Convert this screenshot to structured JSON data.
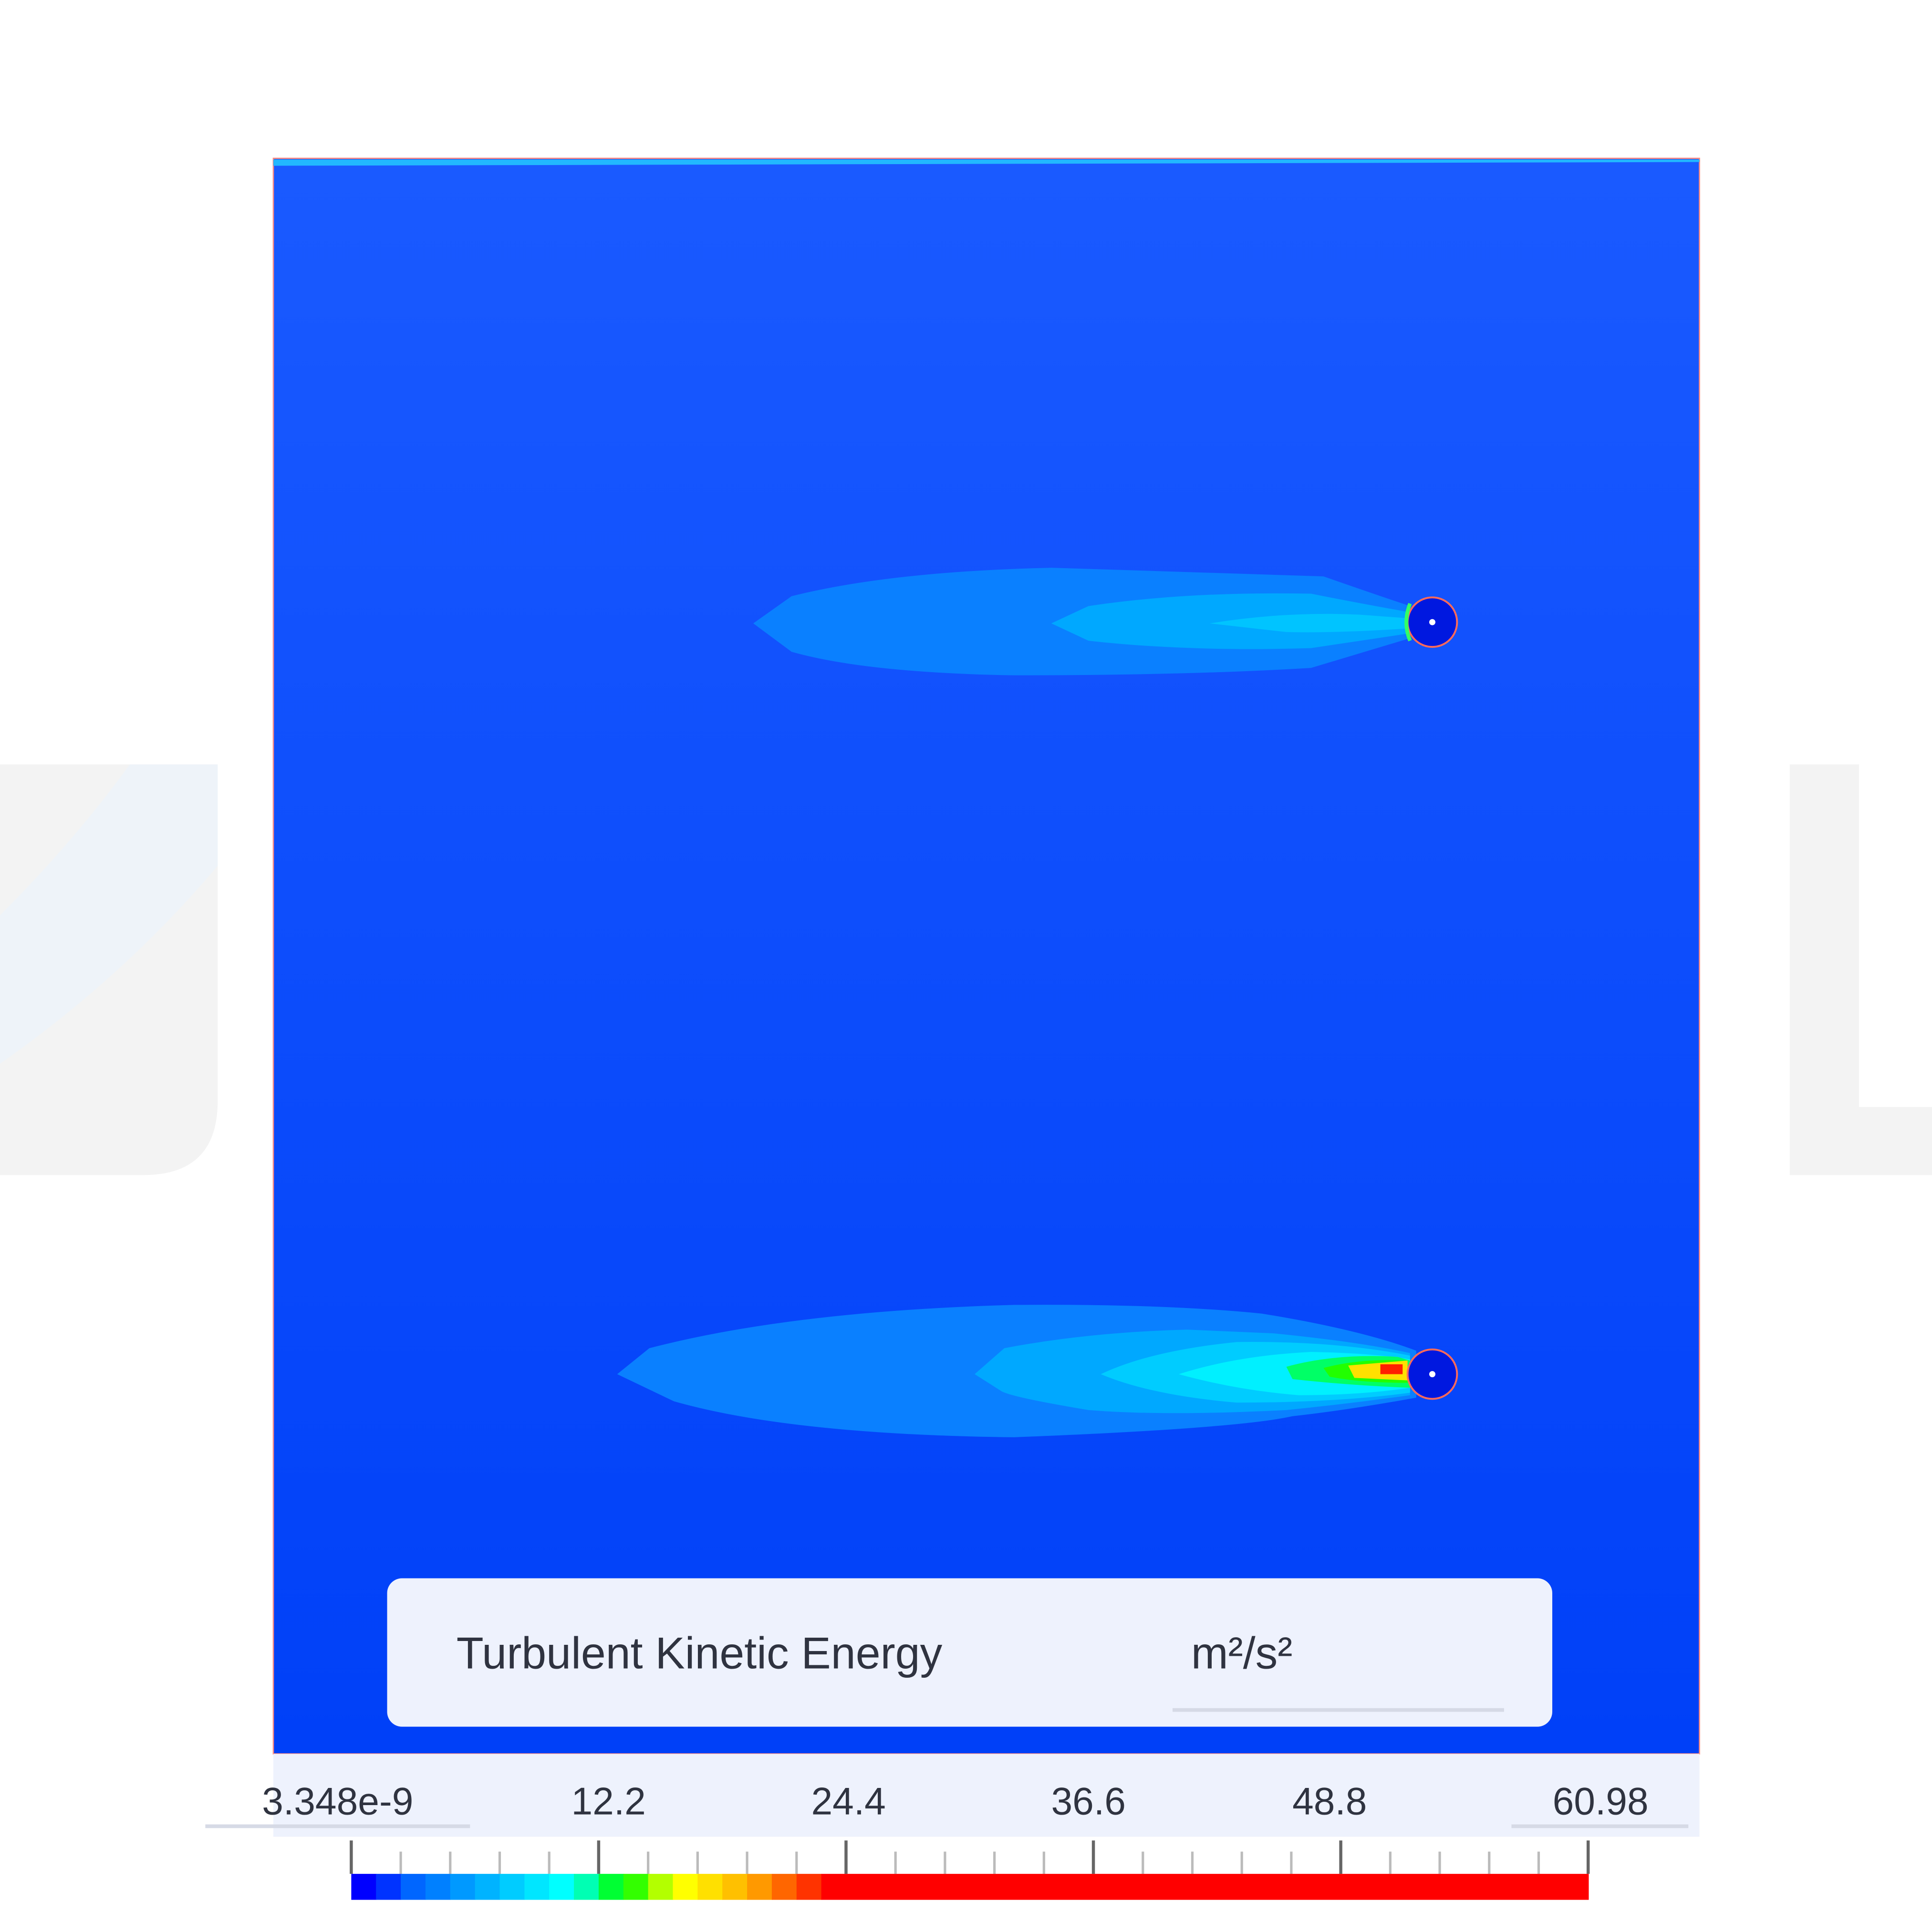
{
  "legend": {
    "title": "Turbulent Kinetic Energy",
    "unit": "m²/s²",
    "tick_labels": [
      "3.348e-9",
      "12.2",
      "24.4",
      "36.6",
      "48.8",
      "60.98"
    ],
    "min": 3.348e-09,
    "max": 60.98,
    "colormap": [
      "#0000ff",
      "#0033ff",
      "#0066ff",
      "#0080ff",
      "#0099ff",
      "#00b3ff",
      "#00ccff",
      "#00e6ff",
      "#00ffff",
      "#00ffb3",
      "#00ff33",
      "#33ff00",
      "#b3ff00",
      "#ffff00",
      "#ffe000",
      "#ffc000",
      "#ff9900",
      "#ff6600",
      "#ff3300",
      "#ff0000"
    ]
  },
  "colors": {
    "background_top": "#1a5aff",
    "background_bottom": "#0040f8",
    "wake_outer": "#0a80ff",
    "wake_mid": "#00aaff",
    "wake_inner": "#00ccff",
    "panel": "#eef2fd"
  }
}
